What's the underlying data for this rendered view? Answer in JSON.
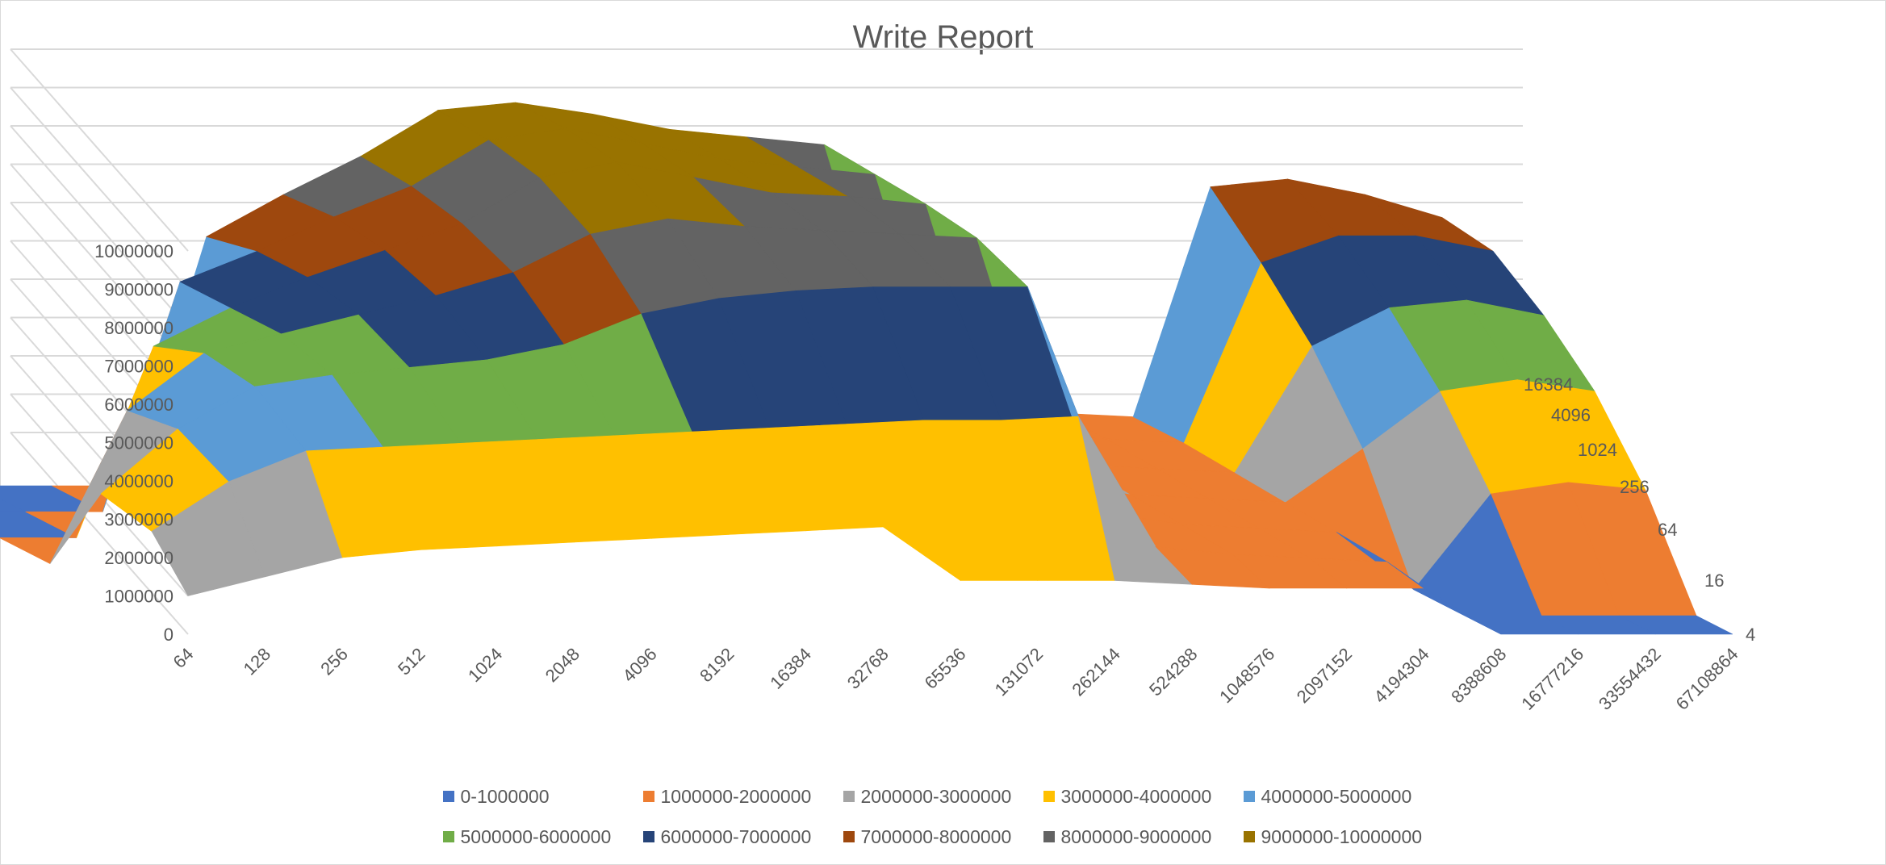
{
  "chart_data": {
    "type": "surface",
    "title": "Write Report",
    "x_categories": [
      "64",
      "128",
      "256",
      "512",
      "1024",
      "2048",
      "4096",
      "8192",
      "16384",
      "32768",
      "65536",
      "131072",
      "262144",
      "524288",
      "1048576",
      "2097152",
      "4194304",
      "8388608",
      "16777216",
      "33554432",
      "67108864"
    ],
    "depth_categories": [
      "4",
      "16",
      "64",
      "256",
      "1024",
      "4096",
      "16384"
    ],
    "z_ticks": [
      "0",
      "1000000",
      "2000000",
      "3000000",
      "4000000",
      "5000000",
      "6000000",
      "7000000",
      "8000000",
      "9000000",
      "10000000"
    ],
    "zlim": [
      0,
      10000000
    ],
    "gridlines": true,
    "legend_position": "bottom",
    "legend": [
      {
        "label": "0-1000000",
        "color": "#4472C4"
      },
      {
        "label": "1000000-2000000",
        "color": "#ED7D31"
      },
      {
        "label": "2000000-3000000",
        "color": "#A5A5A5"
      },
      {
        "label": "3000000-4000000",
        "color": "#FFC000"
      },
      {
        "label": "4000000-5000000",
        "color": "#5B9BD5"
      },
      {
        "label": "5000000-6000000",
        "color": "#70AD47"
      },
      {
        "label": "6000000-7000000",
        "color": "#264478"
      },
      {
        "label": "7000000-8000000",
        "color": "#9E480E"
      },
      {
        "label": "8000000-9000000",
        "color": "#636363"
      },
      {
        "label": "9000000-10000000",
        "color": "#997300"
      }
    ],
    "series": [
      {
        "name": "4",
        "values": [
          1000000,
          1500000,
          2000000,
          2200000,
          2300000,
          2400000,
          2500000,
          2600000,
          2700000,
          2800000,
          1400000,
          1400000,
          1400000,
          1300000,
          1200000,
          1200000,
          1200000,
          0,
          0,
          0,
          0
        ]
      },
      {
        "name": "16",
        "values": [
          2200000,
          3500000,
          4300000,
          4400000,
          4500000,
          4600000,
          4700000,
          4800000,
          4900000,
          5000000,
          5100000,
          5100000,
          5200000,
          1800000,
          1600000,
          1500000,
          1400000,
          0,
          0,
          0,
          0
        ]
      },
      {
        "name": "64",
        "values": [
          2500000,
          4200000,
          5300000,
          5600000,
          5800000,
          6000000,
          6400000,
          7200000,
          7600000,
          7800000,
          7900000,
          7900000,
          7900000,
          2000000,
          1700000,
          1600000,
          1500000,
          0,
          2500000,
          2800000,
          2600000
        ]
      },
      {
        "name": "256",
        "values": [
          0,
          4000000,
          5500000,
          6000000,
          6500000,
          7000000,
          7600000,
          8600000,
          9000000,
          8800000,
          8700000,
          8600000,
          8500000,
          2100000,
          1800000,
          1700000,
          1600000,
          3000000,
          4500000,
          4800000,
          4500000
        ]
      },
      {
        "name": "1024",
        "values": [
          0,
          0,
          5000000,
          6000000,
          6800000,
          7500000,
          8200000,
          9400000,
          9800000,
          9400000,
          9000000,
          8900000,
          8700000,
          2200000,
          1900000,
          1800000,
          1700000,
          5000000,
          6000000,
          6200000,
          5800000
        ]
      },
      {
        "name": "4096",
        "values": [
          0,
          0,
          0,
          6000000,
          6800000,
          7700000,
          8500000,
          9700000,
          10000000,
          9600000,
          9200000,
          9000000,
          8800000,
          2300000,
          2000000,
          1900000,
          1800000,
          6500000,
          7200000,
          7200000,
          6800000
        ]
      },
      {
        "name": "16384",
        "values": [
          0,
          0,
          0,
          0,
          6500000,
          7600000,
          8600000,
          9800000,
          10000000,
          9700000,
          9300000,
          9100000,
          8900000,
          2300000,
          2000000,
          1900000,
          1800000,
          7800000,
          8000000,
          7600000,
          7000000
        ]
      }
    ]
  }
}
